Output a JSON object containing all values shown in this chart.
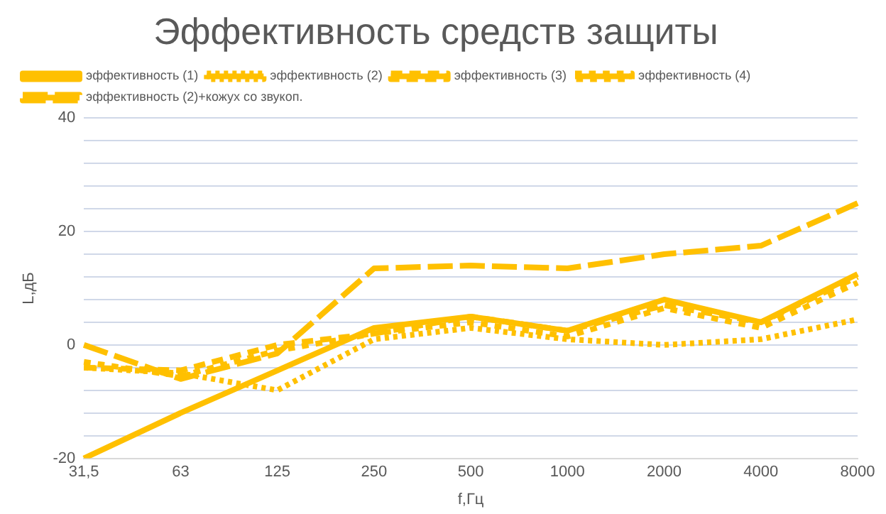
{
  "chart_data": {
    "type": "line",
    "title": "Эффективность средств защиты",
    "xlabel": "f,Гц",
    "ylabel": "L,дБ",
    "categories": [
      "31,5",
      "63",
      "125",
      "250",
      "500",
      "1000",
      "2000",
      "4000",
      "8000"
    ],
    "ylim": [
      -20,
      40
    ],
    "yticks": [
      -20,
      {
        "value": -16,
        "label": null
      },
      {
        "value": -12,
        "label": null
      },
      {
        "value": -8,
        "label": null
      },
      {
        "value": -4,
        "label": null
      },
      0,
      {
        "value": 4,
        "label": null
      },
      {
        "value": 8,
        "label": null
      },
      {
        "value": 12,
        "label": null
      },
      {
        "value": 16,
        "label": null
      },
      20,
      {
        "value": 24,
        "label": null
      },
      {
        "value": 28,
        "label": null
      },
      {
        "value": 32,
        "label": null
      },
      {
        "value": 36,
        "label": null
      },
      40
    ],
    "grid": "y",
    "legend": "top left",
    "marker": "none",
    "series": [
      {
        "name": "эффективность (1)",
        "color": "#ffc000",
        "line_style": "solid",
        "values": [
          -20,
          -12,
          -4.5,
          3,
          5,
          2.5,
          8,
          4,
          12.5
        ]
      },
      {
        "name": "эффективность (2)",
        "color": "#ffc000",
        "line_style": "dotted",
        "values": [
          -4,
          -5,
          -8,
          1,
          3,
          1,
          0,
          1,
          4.5
        ]
      },
      {
        "name": "эффективность (3)",
        "color": "#ffc000",
        "line_style": "dashed",
        "values": [
          -4,
          -4.5,
          0,
          2,
          5,
          2.5,
          7,
          4,
          12
        ]
      },
      {
        "name": "эффективность (4)",
        "color": "#ffc000",
        "line_style": "dashed",
        "values": [
          -3,
          -5.5,
          -1,
          2,
          4,
          1.5,
          6.5,
          3,
          11
        ]
      },
      {
        "name": "эффективность (2)+кожух со звукоп.",
        "color": "#ffc000",
        "line_style": "dashed",
        "values": [
          0,
          -6,
          -1.5,
          13.5,
          14,
          13.5,
          16,
          17.5,
          25
        ]
      }
    ]
  }
}
